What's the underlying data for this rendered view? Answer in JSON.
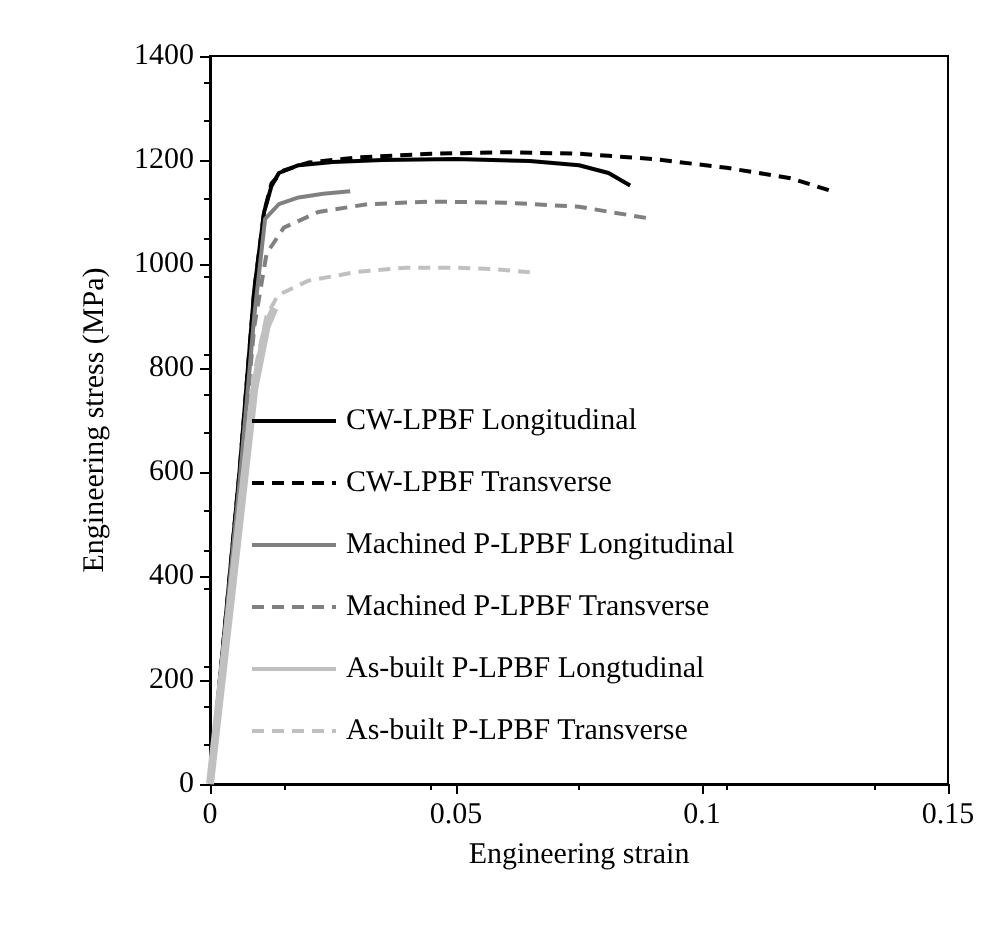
{
  "chart_data": {
    "type": "line",
    "xlabel": "Engineering strain",
    "ylabel": "Engineering stress (MPa)",
    "xlim": [
      0,
      0.15
    ],
    "xticks": [
      0,
      0.05,
      0.1,
      0.15
    ],
    "ylim": [
      0,
      1400
    ],
    "yticks": [
      0,
      200,
      400,
      600,
      800,
      1000,
      1200,
      1400
    ],
    "grid": false,
    "legend": "bottom left",
    "marker": "none",
    "series": [
      {
        "name": "CW-LPBF Longitudinal",
        "color": "#000000",
        "line_style": "solid",
        "x": [
          0,
          0.006,
          0.009,
          0.011,
          0.0125,
          0.014,
          0.018,
          0.025,
          0.035,
          0.05,
          0.065,
          0.075,
          0.081,
          0.0854
        ],
        "values": [
          0,
          600,
          950,
          1100,
          1150,
          1175,
          1190,
          1196,
          1200,
          1202,
          1198,
          1190,
          1175,
          1151
        ]
      },
      {
        "name": "CW-LPBF Transverse",
        "color": "#000000",
        "line_style": "dashed",
        "x": [
          0,
          0.006,
          0.009,
          0.011,
          0.0125,
          0.015,
          0.02,
          0.03,
          0.045,
          0.06,
          0.075,
          0.09,
          0.105,
          0.118,
          0.1264
        ],
        "values": [
          0,
          600,
          950,
          1100,
          1155,
          1180,
          1195,
          1205,
          1212,
          1215,
          1212,
          1202,
          1185,
          1165,
          1140
        ]
      },
      {
        "name": "Machined P-LPBF Longitudinal",
        "color": "#808080",
        "line_style": "solid",
        "x": [
          0,
          0.006,
          0.009,
          0.0112,
          0.014,
          0.018,
          0.023,
          0.0285
        ],
        "values": [
          0,
          580,
          900,
          1087,
          1115,
          1128,
          1135,
          1140
        ]
      },
      {
        "name": "Machined P-LPBF Transverse",
        "color": "#808080",
        "line_style": "dashed",
        "x": [
          0,
          0.006,
          0.009,
          0.0115,
          0.015,
          0.022,
          0.032,
          0.045,
          0.06,
          0.075,
          0.0897
        ],
        "values": [
          0,
          570,
          880,
          1020,
          1070,
          1100,
          1115,
          1120,
          1118,
          1110,
          1087
        ]
      },
      {
        "name": "As-built P-LPBF Longtudinal",
        "color": "#c0c0c0",
        "line_style": "solid",
        "x": [
          0,
          0.005,
          0.009,
          0.0115,
          0.0131
        ],
        "values": [
          0,
          420,
          760,
          880,
          915
        ]
      },
      {
        "name": "As-built P-LPBF Transverse",
        "color": "#c0c0c0",
        "line_style": "dashed",
        "x": [
          0,
          0.005,
          0.009,
          0.0115,
          0.0138,
          0.02,
          0.03,
          0.04,
          0.05,
          0.058,
          0.065
        ],
        "values": [
          0,
          450,
          790,
          900,
          940,
          968,
          985,
          993,
          993,
          990,
          984
        ]
      }
    ]
  }
}
